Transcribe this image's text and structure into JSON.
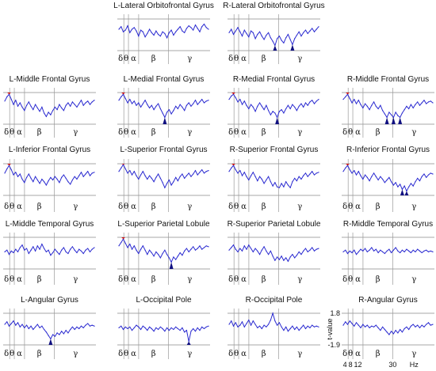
{
  "chart_data": {
    "type": "line",
    "layout": "grid",
    "series_color": "#2a2ad0",
    "peak_colors": {
      "positive": "#cc1010",
      "negative": "#101080"
    },
    "bands": [
      "δ",
      "θ",
      "α",
      "β",
      "γ"
    ],
    "axis": {
      "ylabel": "t-value",
      "yticks": [
        "1.8",
        "-1.9"
      ],
      "xticks": [
        "4",
        "8",
        "12",
        "30",
        "Hz"
      ],
      "ylim": [
        -1.9,
        1.8
      ]
    },
    "panels": [
      {
        "title": "L-Lateral Orbitofrontal Gyrus",
        "values": [
          0.6,
          0.9,
          0.3,
          0.5,
          1.0,
          0.2,
          0.6,
          0.8,
          0.4,
          -0.2,
          0.5,
          0.3,
          -0.3,
          0.1,
          0.6,
          0.2,
          -0.1,
          0.4,
          0.0,
          -0.2,
          0.3,
          0.1,
          -0.4,
          0.2,
          0.5,
          -0.1,
          0.3,
          0.6,
          0.9,
          0.4,
          0.2,
          0.7,
          1.0,
          0.8,
          0.5,
          1.1,
          0.7,
          0.3,
          0.9,
          1.2,
          0.8,
          0.6
        ]
      },
      {
        "title": "R-Lateral Orbitofrontal Gyrus",
        "values": [
          0.2,
          0.6,
          0.0,
          0.4,
          0.8,
          0.3,
          -0.2,
          0.5,
          0.1,
          -0.3,
          0.4,
          0.2,
          -0.5,
          0.0,
          0.3,
          -0.2,
          -0.6,
          -0.1,
          0.2,
          -0.4,
          -0.8,
          -1.3,
          -0.5,
          -0.2,
          -0.7,
          -1.0,
          -0.4,
          0.0,
          -0.6,
          -1.2,
          -0.5,
          -0.1,
          0.3,
          -0.2,
          0.2,
          0.5,
          0.1,
          0.4,
          0.7,
          0.3,
          0.6,
          0.9
        ]
      },
      {
        "title": "L-Middle Frontal Gyrus",
        "values": [
          0.8,
          1.3,
          1.6,
          1.0,
          0.4,
          0.9,
          0.2,
          0.6,
          0.1,
          -0.3,
          0.3,
          0.7,
          0.2,
          -0.2,
          0.4,
          0.0,
          -0.4,
          0.1,
          -0.6,
          -1.0,
          -0.5,
          -0.8,
          -0.3,
          0.1,
          -0.2,
          0.4,
          0.0,
          -0.3,
          0.3,
          0.6,
          0.2,
          0.7,
          0.4,
          0.1,
          0.5,
          0.9,
          0.3,
          0.6,
          0.8,
          0.4,
          0.7,
          0.9
        ]
      },
      {
        "title": "L-Medial Frontal Gyrus",
        "values": [
          0.9,
          1.3,
          1.6,
          1.1,
          0.6,
          1.0,
          0.5,
          0.8,
          0.3,
          0.6,
          0.1,
          0.5,
          0.9,
          0.4,
          0.0,
          0.3,
          -0.2,
          0.2,
          0.5,
          -0.1,
          -0.6,
          -1.1,
          -0.5,
          -0.2,
          -0.7,
          -0.3,
          0.2,
          -0.1,
          0.4,
          0.1,
          -0.3,
          0.3,
          0.6,
          0.2,
          0.5,
          0.9,
          0.4,
          0.7,
          1.0,
          0.6,
          0.8,
          0.9
        ]
      },
      {
        "title": "R-Medial Frontal Gyrus",
        "values": [
          1.0,
          1.4,
          1.6,
          1.2,
          0.7,
          1.0,
          0.4,
          0.8,
          0.3,
          -0.1,
          0.4,
          0.1,
          -0.4,
          0.2,
          0.6,
          0.2,
          -0.2,
          0.3,
          -0.3,
          -0.8,
          -0.4,
          -0.6,
          -1.1,
          -0.4,
          -0.2,
          -0.6,
          -0.1,
          0.3,
          -0.1,
          0.4,
          0.1,
          -0.3,
          0.2,
          0.5,
          0.1,
          0.6,
          0.3,
          0.7,
          0.9,
          0.5,
          0.8,
          1.0
        ]
      },
      {
        "title": "R-Middle Frontal Gyrus",
        "values": [
          1.0,
          1.3,
          1.6,
          1.1,
          0.6,
          1.0,
          0.5,
          0.9,
          0.4,
          0.0,
          0.5,
          0.2,
          -0.2,
          0.3,
          0.7,
          0.2,
          -0.1,
          0.3,
          -0.3,
          -0.7,
          -1.1,
          -0.5,
          -0.8,
          -1.1,
          -0.5,
          -0.9,
          -1.1,
          -0.6,
          -0.2,
          0.2,
          -0.1,
          0.4,
          0.0,
          0.4,
          0.7,
          0.3,
          0.6,
          0.9,
          0.5,
          0.7,
          0.8,
          0.6
        ]
      },
      {
        "title": "L-Inferior Frontal Gyrus",
        "values": [
          0.7,
          1.2,
          1.6,
          1.1,
          0.5,
          0.8,
          0.3,
          0.6,
          0.0,
          -0.4,
          0.2,
          0.6,
          0.1,
          -0.3,
          0.3,
          -0.1,
          -0.5,
          0.0,
          -0.3,
          -0.7,
          -0.2,
          0.2,
          -0.1,
          0.3,
          0.0,
          -0.4,
          0.2,
          0.5,
          0.1,
          -0.3,
          -0.6,
          -0.1,
          0.3,
          0.0,
          0.4,
          0.8,
          0.3,
          0.6,
          0.9,
          0.4,
          0.7,
          0.8
        ]
      },
      {
        "title": "L-Superior Frontal Gyrus",
        "values": [
          0.9,
          1.3,
          1.7,
          1.2,
          0.7,
          1.0,
          0.5,
          0.9,
          0.4,
          0.0,
          0.5,
          0.9,
          0.4,
          0.0,
          0.4,
          0.1,
          -0.3,
          0.2,
          0.6,
          0.1,
          -0.4,
          -1.0,
          -0.5,
          -0.1,
          -0.7,
          -0.3,
          0.2,
          -0.2,
          0.3,
          0.6,
          0.1,
          0.4,
          0.7,
          0.3,
          0.6,
          1.0,
          0.5,
          0.8,
          1.1,
          0.7,
          0.9,
          1.0
        ]
      },
      {
        "title": "R-Superior Frontal Gyrus",
        "values": [
          0.9,
          1.3,
          1.6,
          1.1,
          0.7,
          1.0,
          0.4,
          0.8,
          0.3,
          -0.1,
          0.4,
          0.8,
          0.3,
          -0.2,
          0.3,
          0.0,
          -0.5,
          -0.1,
          0.3,
          -0.3,
          -0.8,
          -0.4,
          -0.9,
          -1.0,
          -0.5,
          -0.9,
          -0.3,
          -0.7,
          -1.0,
          -0.3,
          0.1,
          -0.2,
          0.3,
          0.0,
          0.4,
          0.7,
          0.3,
          0.6,
          0.9,
          0.5,
          0.7,
          0.8
        ]
      },
      {
        "title": "R-Inferior Frontal Gyrus",
        "values": [
          0.9,
          1.3,
          1.6,
          1.1,
          0.7,
          1.0,
          0.5,
          0.9,
          0.4,
          0.0,
          0.5,
          0.2,
          -0.2,
          0.3,
          0.7,
          0.3,
          -0.1,
          0.3,
          0.0,
          -0.4,
          -0.1,
          0.2,
          -0.3,
          -0.7,
          -0.4,
          -0.9,
          -0.6,
          -1.2,
          -0.8,
          -1.4,
          -0.9,
          -0.5,
          -0.8,
          -0.3,
          0.1,
          -0.2,
          0.3,
          0.6,
          0.2,
          0.5,
          0.7,
          0.6
        ]
      },
      {
        "title": "L-Middle Temporal Gyrus",
        "values": [
          0.1,
          0.3,
          -0.2,
          0.2,
          0.0,
          0.4,
          0.1,
          0.6,
          0.9,
          0.3,
          0.5,
          -0.1,
          0.3,
          0.7,
          0.2,
          0.8,
          0.4,
          1.0,
          0.5,
          0.1,
          0.3,
          -0.3,
          0.0,
          0.4,
          0.1,
          -0.2,
          0.3,
          0.6,
          0.1,
          -0.1,
          0.4,
          0.7,
          0.3,
          0.0,
          0.4,
          0.2,
          -0.1,
          0.3,
          0.5,
          0.1,
          0.4,
          0.6
        ]
      },
      {
        "title": "L-Superior Parietal Lobule",
        "values": [
          0.8,
          1.2,
          1.6,
          1.1,
          0.6,
          1.0,
          0.4,
          0.8,
          0.3,
          -0.1,
          0.4,
          0.8,
          0.3,
          -0.2,
          0.3,
          0.0,
          -0.4,
          0.1,
          -0.2,
          -0.6,
          -0.1,
          0.3,
          -0.2,
          -0.6,
          -1.1,
          -0.5,
          -0.8,
          -0.4,
          0.0,
          -0.3,
          0.2,
          0.5,
          0.1,
          0.4,
          0.7,
          0.3,
          0.5,
          0.8,
          0.4,
          0.6,
          0.8,
          0.7
        ]
      },
      {
        "title": "R-Superior Parietal Lobule",
        "values": [
          0.3,
          0.6,
          0.9,
          0.4,
          0.1,
          0.5,
          0.2,
          0.8,
          0.4,
          0.9,
          0.5,
          0.1,
          0.5,
          0.2,
          -0.2,
          0.3,
          0.7,
          0.2,
          -0.2,
          0.2,
          -0.4,
          -0.9,
          -0.5,
          -0.8,
          -0.4,
          -0.9,
          -0.6,
          -1.0,
          -0.5,
          -0.2,
          -0.6,
          -0.3,
          0.1,
          -0.2,
          0.2,
          0.5,
          0.1,
          0.3,
          0.6,
          0.2,
          0.4,
          0.5
        ]
      },
      {
        "title": "R-Middle Temporal Gyrus",
        "values": [
          0.1,
          0.3,
          -0.1,
          0.2,
          0.0,
          0.3,
          -0.2,
          0.1,
          0.4,
          0.2,
          0.5,
          0.1,
          0.3,
          0.6,
          0.2,
          0.4,
          0.0,
          0.3,
          0.1,
          -0.1,
          0.2,
          0.4,
          0.0,
          0.3,
          0.6,
          0.2,
          0.0,
          0.3,
          0.1,
          0.4,
          0.2,
          0.0,
          0.3,
          0.1,
          0.4,
          0.2,
          0.0,
          0.2,
          0.3,
          0.1,
          0.2,
          0.1
        ]
      },
      {
        "title": "L-Angular Gyrus",
        "values": [
          0.5,
          0.8,
          0.3,
          0.6,
          0.9,
          0.4,
          0.7,
          0.2,
          0.5,
          0.1,
          0.4,
          0.0,
          0.3,
          -0.1,
          0.2,
          0.5,
          0.1,
          0.3,
          -0.1,
          -0.4,
          -0.8,
          -1.2,
          -0.7,
          -0.9,
          -0.5,
          -0.7,
          -0.3,
          -0.6,
          -0.2,
          -0.5,
          -0.1,
          0.2,
          -0.1,
          0.2,
          0.0,
          0.3,
          0.1,
          0.4,
          0.6,
          0.3,
          0.4,
          0.3
        ]
      },
      {
        "title": "L-Occipital Pole",
        "values": [
          0.1,
          0.3,
          -0.1,
          0.2,
          0.0,
          0.2,
          -0.2,
          0.1,
          0.4,
          0.2,
          -0.1,
          0.3,
          0.1,
          -0.2,
          0.2,
          0.0,
          -0.3,
          0.1,
          -0.1,
          0.2,
          0.0,
          -0.3,
          0.1,
          -0.2,
          0.1,
          -0.1,
          0.2,
          0.0,
          -0.2,
          0.1,
          -0.4,
          -0.2,
          -1.5,
          -0.3,
          0.0,
          -0.3,
          0.1,
          -0.2,
          0.2,
          0.0,
          0.2,
          0.3
        ]
      },
      {
        "title": "R-Occipital Pole",
        "values": [
          0.5,
          0.9,
          0.3,
          0.7,
          0.2,
          0.4,
          0.8,
          0.2,
          0.6,
          1.0,
          0.4,
          0.9,
          0.5,
          0.1,
          0.3,
          0.0,
          0.4,
          0.2,
          0.5,
          1.0,
          1.8,
          0.9,
          0.4,
          0.7,
          0.2,
          -0.2,
          0.2,
          -0.3,
          0.0,
          0.3,
          -0.1,
          0.2,
          -0.2,
          0.1,
          0.4,
          0.0,
          0.3,
          0.1,
          0.4,
          0.2,
          0.3,
          0.2
        ]
      },
      {
        "title": "R-Angular Gyrus",
        "values": [
          0.4,
          0.8,
          0.5,
          0.9,
          0.6,
          0.3,
          0.7,
          0.4,
          0.1,
          0.5,
          0.2,
          0.4,
          0.1,
          0.3,
          0.2,
          0.4,
          0.1,
          -0.2,
          0.2,
          -0.1,
          -0.4,
          -0.7,
          -0.3,
          -0.6,
          -0.2,
          -0.5,
          -0.1,
          -0.4,
          0.0,
          0.2,
          -0.1,
          0.3,
          0.5,
          0.2,
          0.4,
          0.1,
          0.4,
          0.2,
          0.5,
          0.7,
          0.4,
          0.5
        ]
      }
    ]
  }
}
